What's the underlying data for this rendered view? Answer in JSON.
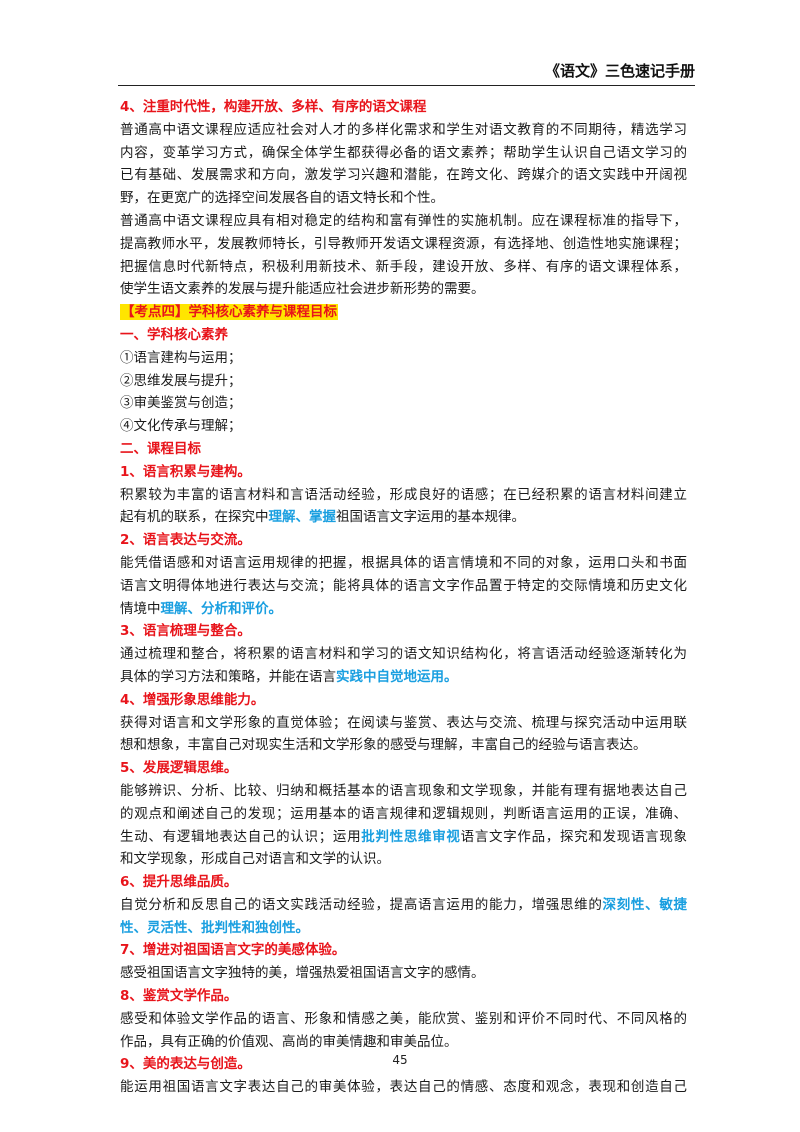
{
  "header": {
    "title": "《语文》三色速记手册"
  },
  "page_number": "45",
  "section4": {
    "heading": "4、注重时代性，构建开放、多样、有序的语文课程",
    "p1": [
      "普通高中语文课程应适应社会对人才的多样化需求和学生对语文教育的不同期待，精选学习",
      "内容，变革学习方式，确保全体学生都获得必备的语文素养；帮助学生认识自己语文学习的",
      "已有基础、发展需求和方向，激发学习兴趣和潜能，在跨文化、跨媒介的语文实践中开阔视",
      "野，在更宽广的选择空间发展各自的语文特长和个性。"
    ],
    "p2": [
      "普通高中语文课程应具有相对稳定的结构和富有弹性的实施机制。应在课程标准的指导下，",
      "提高教师水平，发展教师特长，引导教师开发语文课程资源，有选择地、创造性地实施课程；",
      "把握信息时代新特点，积极利用新技术、新手段，建设开放、多样、有序的语文课程体系，",
      "使学生语文素养的发展与提升能适应社会进步新形势的需要。"
    ]
  },
  "kaodian4": {
    "label": "【考点四】学科核心素养与课程目标"
  },
  "core": {
    "heading": "一、学科核心素养",
    "items": [
      "①语言建构与运用；",
      "②思维发展与提升；",
      "③审美鉴赏与创造；",
      "④文化传承与理解；"
    ]
  },
  "goals": {
    "heading": "二、课程目标",
    "g1": {
      "heading": "1、语言积累与建构。",
      "l1": "积累较为丰富的语言材料和言语活动经验，形成良好的语感；在已经积累的语言材料间建立",
      "l2_a": "起有机的联系，在探究中",
      "l2_hl": "理解、掌握",
      "l2_b": "祖国语言文字运用的基本规律。"
    },
    "g2": {
      "heading": "2、语言表达与交流。",
      "l1": "能凭借语感和对语言运用规律的把握，根据具体的语言情境和不同的对象，运用口头和书面",
      "l2": "语言文明得体地进行表达与交流；能将具体的语言文字作品置于特定的交际情境和历史文化",
      "l3_a": "情境中",
      "l3_hl": "理解、分析和评价。"
    },
    "g3": {
      "heading": "3、语言梳理与整合。",
      "l1": "通过梳理和整合，将积累的语言材料和学习的语文知识结构化，将言语活动经验逐渐转化为",
      "l2_a": "具体的学习方法和策略，并能在语言",
      "l2_hl": "实践中自觉地运用。"
    },
    "g4": {
      "heading": "4、增强形象思维能力。",
      "l1": "获得对语言和文学形象的直觉体验；在阅读与鉴赏、表达与交流、梳理与探究活动中运用联",
      "l2": "想和想象，丰富自己对现实生活和文学形象的感受与理解，丰富自己的经验与语言表达。"
    },
    "g5": {
      "heading": "5、发展逻辑思维。",
      "l1": "能够辨识、分析、比较、归纳和概括基本的语言现象和文学现象，并能有理有据地表达自己",
      "l2": "的观点和阐述自己的发现；运用基本的语言规律和逻辑规则，判断语言运用的正误，准确、",
      "l3_a": "生动、有逻辑地表达自己的认识；运用",
      "l3_hl": "批判性思维审视",
      "l3_b": "语言文字作品，探究和发现语言现象",
      "l4": "和文学现象，形成自己对语言和文学的认识。"
    },
    "g6": {
      "heading": "6、提升思维品质。",
      "l1_a": "自觉分析和反思自己的语文实践活动经验，提高语言运用的能力，增强思维的",
      "l1_hl": "深刻性、敏捷",
      "l2_hl": "性、灵活性、批判性和独创性。"
    },
    "g7": {
      "heading": "7、增进对祖国语言文字的美感体验。",
      "l1": "感受祖国语言文字独特的美，增强热爱祖国语言文字的感情。"
    },
    "g8": {
      "heading": "8、鉴赏文学作品。",
      "l1": "感受和体验文学作品的语言、形象和情感之美，能欣赏、鉴别和评价不同时代、不同风格的",
      "l2": "作品，具有正确的价值观、高尚的审美情趣和审美品位。"
    },
    "g9": {
      "heading": "9、美的表达与创造。",
      "l1": "能运用祖国语言文字表达自己的审美体验，表达自己的情感、态度和观念，表现和创造自己"
    }
  }
}
